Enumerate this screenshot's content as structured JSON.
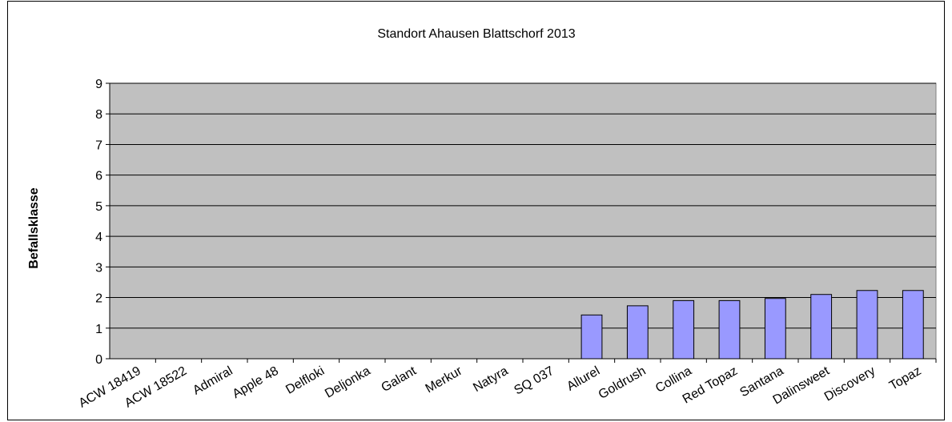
{
  "chart_data": {
    "type": "bar",
    "title": "Standort Ahausen Blattschorf 2013",
    "xlabel": "",
    "ylabel": "Befallsklasse",
    "ylim": [
      0,
      9
    ],
    "yticks": [
      0,
      1,
      2,
      3,
      4,
      5,
      6,
      7,
      8,
      9
    ],
    "grid": true,
    "legend": "none",
    "categories": [
      "ACW 18419",
      "ACW 18522",
      "Admiral",
      "Apple 48",
      "Delfloki",
      "Deljonka",
      "Galant",
      "Merkur",
      "Natyra",
      "SQ 037",
      "Allurel",
      "Goldrush",
      "Collina",
      "Red Topaz",
      "Santana",
      "Dalinsweet",
      "Discovery",
      "Topaz"
    ],
    "values": [
      0,
      0,
      0,
      0,
      0,
      0,
      0,
      0,
      0,
      0,
      1.43,
      1.73,
      1.9,
      1.9,
      1.97,
      2.1,
      2.23,
      2.23
    ],
    "colors": {
      "plot_background": "#c0c0c0",
      "bar_fill": "#9999ff",
      "bar_stroke": "#000000",
      "gridline": "#000000"
    }
  }
}
